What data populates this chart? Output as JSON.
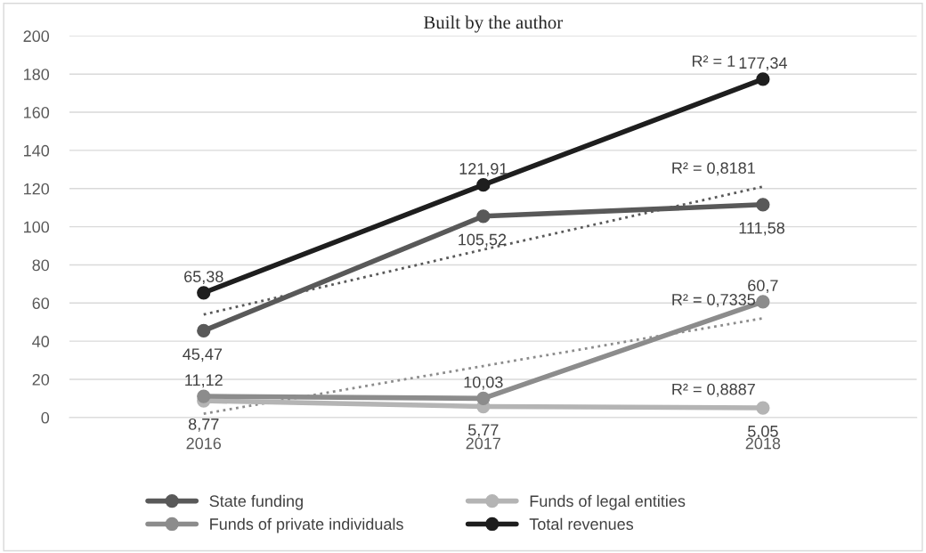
{
  "chart_data": {
    "type": "line",
    "title": "Built by the author",
    "categories": [
      "2016",
      "2017",
      "2018"
    ],
    "ylim": [
      0,
      200
    ],
    "yticks": [
      0,
      20,
      40,
      60,
      80,
      100,
      120,
      140,
      160,
      180,
      200
    ],
    "grid": "y",
    "legend": "bottom",
    "marker": "circle",
    "line_style": "solid",
    "series": [
      {
        "name": "State funding",
        "color": "#595959",
        "values": [
          45.47,
          105.52,
          111.58
        ],
        "value_labels": [
          "45,47",
          "105,52",
          "111,58"
        ]
      },
      {
        "name": "Funds of legal entities",
        "color": "#b4b4b4",
        "values": [
          8.77,
          5.77,
          5.05
        ],
        "value_labels": [
          "8,77",
          "5,77",
          "5,05"
        ]
      },
      {
        "name": "Funds of private individuals",
        "color": "#8c8c8c",
        "values": [
          11.12,
          10.03,
          60.7
        ],
        "value_labels": [
          "11,12",
          "10,03",
          "60,7"
        ]
      },
      {
        "name": "Total revenues",
        "color": "#1e1e1e",
        "values": [
          65.38,
          121.91,
          177.34
        ],
        "value_labels": [
          "65,38",
          "121,91",
          "177,34"
        ]
      },
      {
        "type": "line",
        "color": "#595959",
        "values": [
          54,
          88,
          121
        ],
        "line_style": "dotted",
        "marker": "none"
      },
      {
        "type": "line",
        "color": "#8c8c8c",
        "values": [
          2,
          27,
          52
        ],
        "line_style": "dotted",
        "marker": "none"
      }
    ],
    "annotations": [
      {
        "text": "R² = 1",
        "x": "2018",
        "y": 177
      },
      {
        "text": "R² = 0,8181",
        "x": "2018",
        "y": 121
      },
      {
        "text": "R² = 0,7335",
        "x": "2018",
        "y": 52
      },
      {
        "text": "R² = 0,8887",
        "x": "2018",
        "y": 5
      }
    ]
  }
}
